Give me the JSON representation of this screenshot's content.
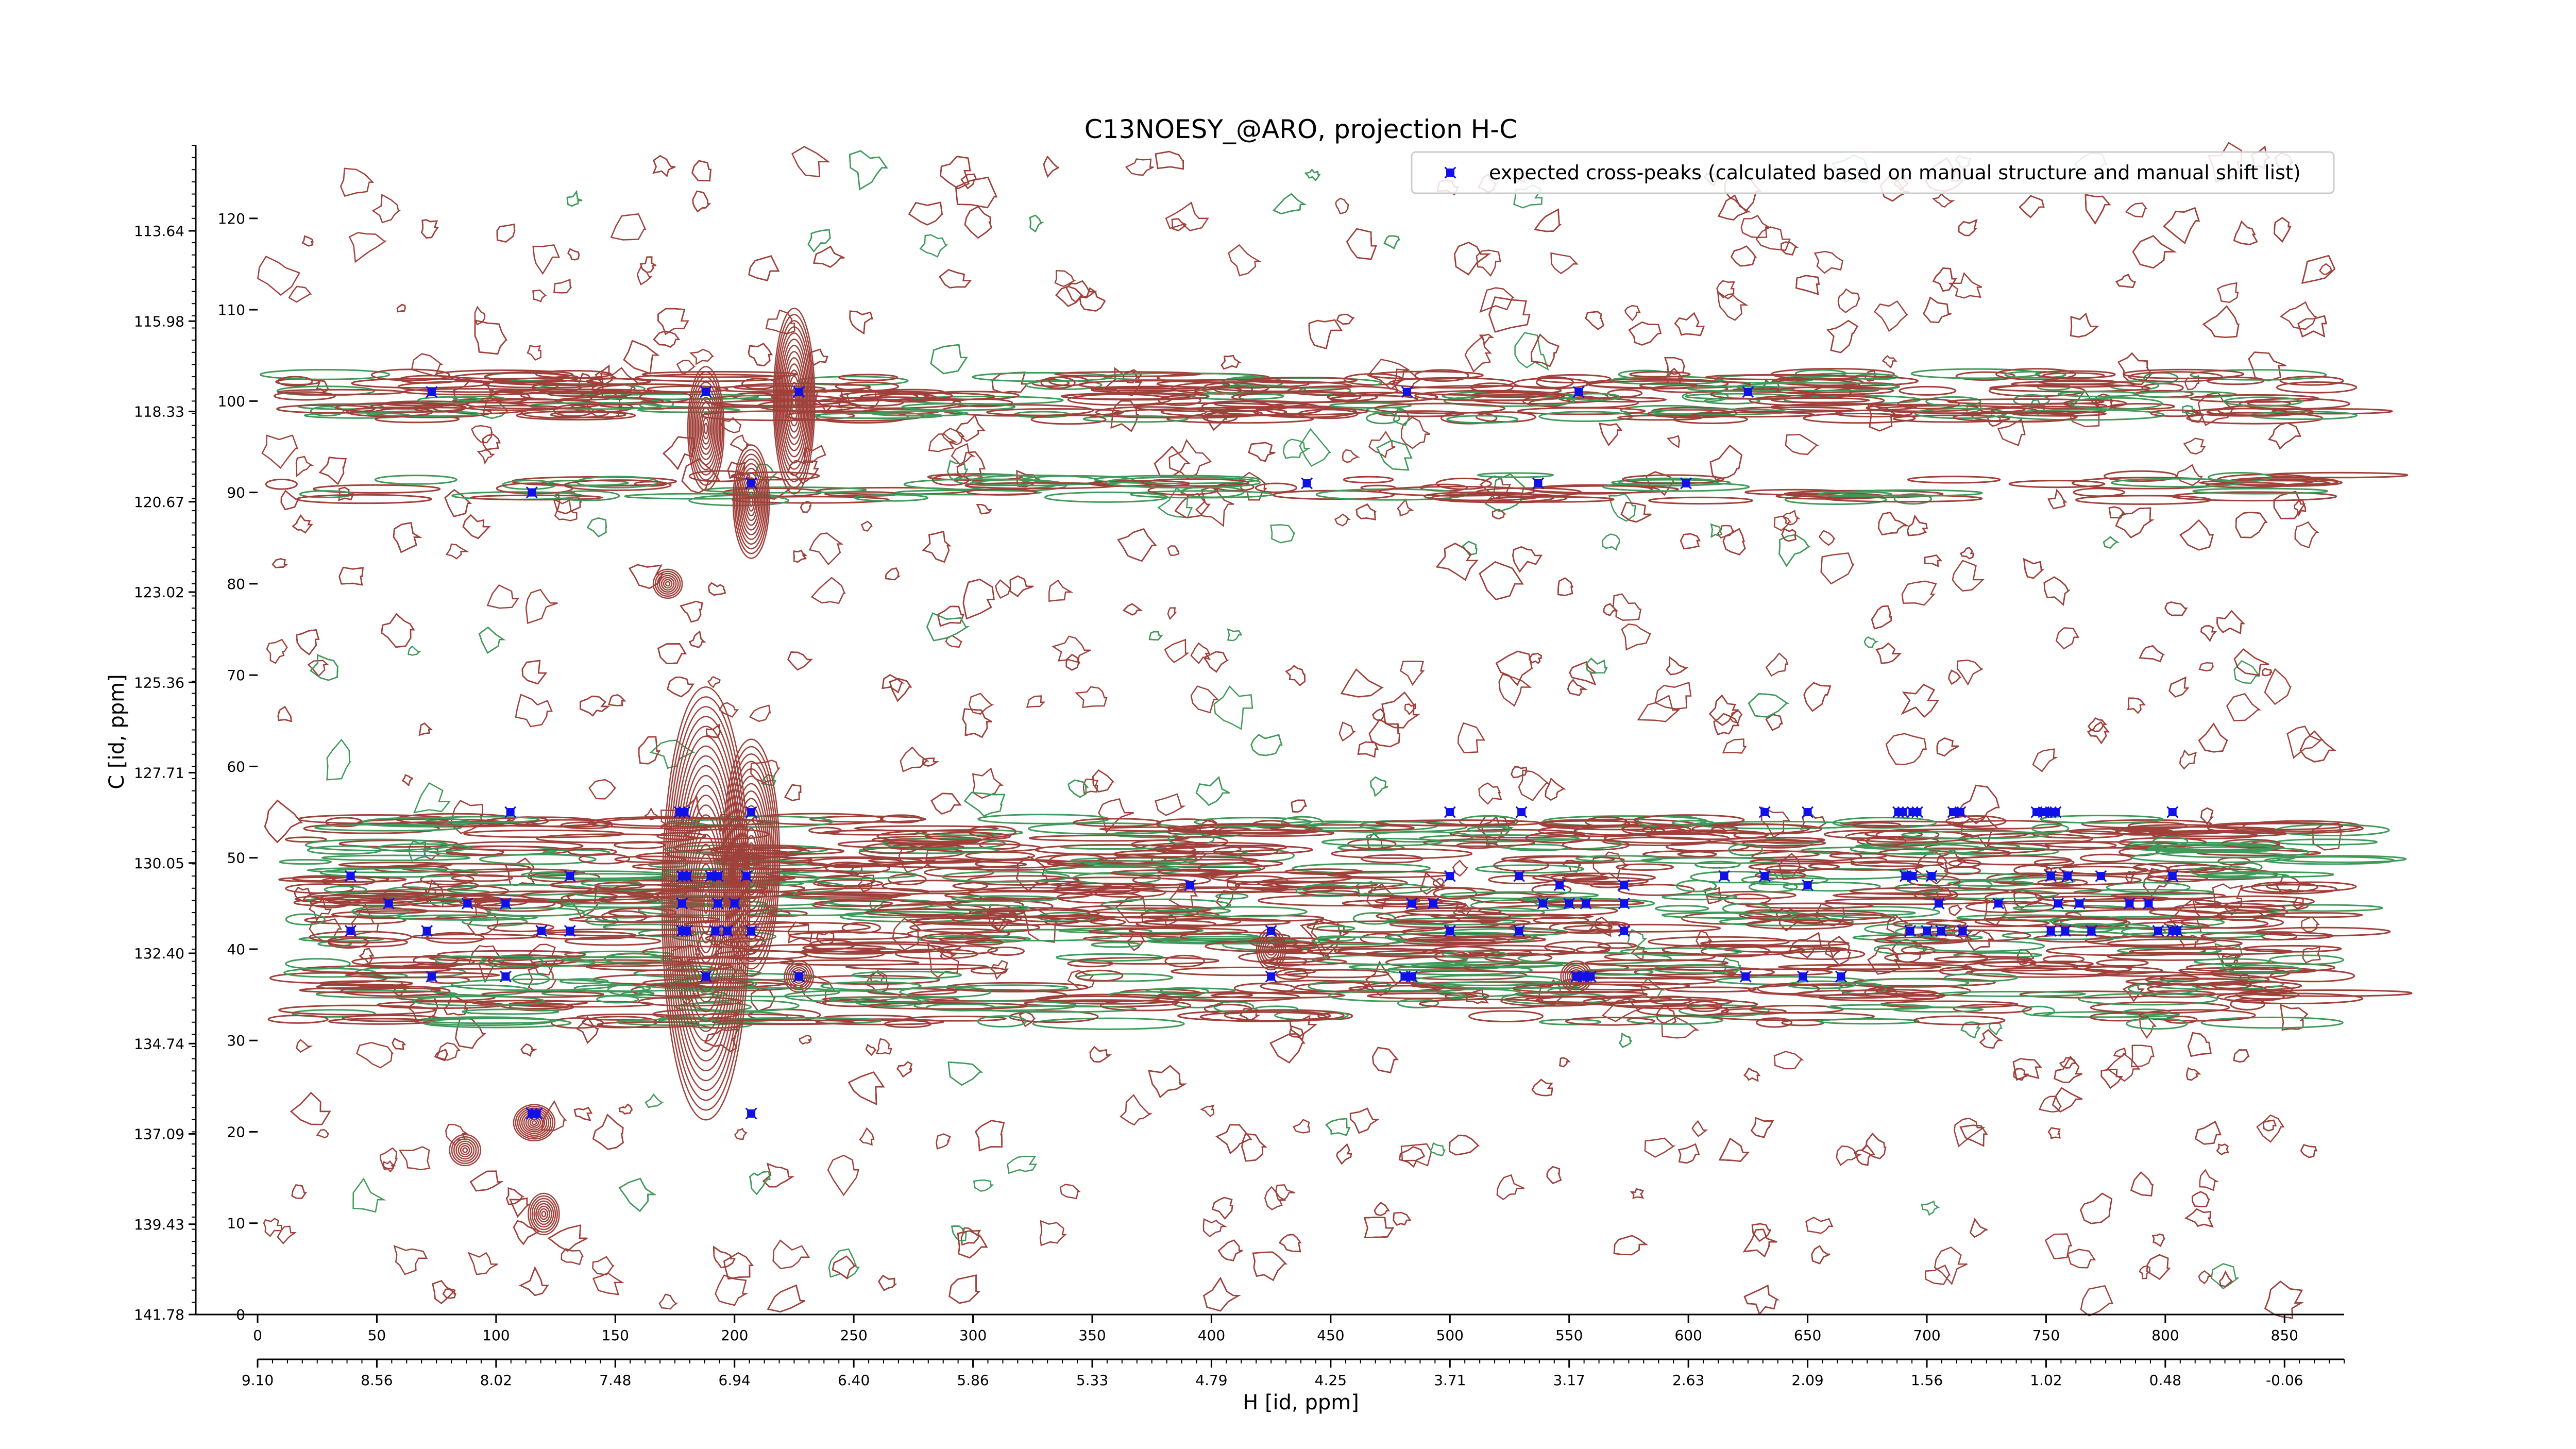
{
  "chart_data": {
    "type": "scatter",
    "title": "C13NOESY_@ARO, projection H-C",
    "xlabel": "H [id, ppm]",
    "ylabel": "C [id, ppm]",
    "xlim": [
      0,
      875
    ],
    "ylim": [
      0,
      128
    ],
    "x_ticks": [
      0,
      50,
      100,
      150,
      200,
      250,
      300,
      350,
      400,
      450,
      500,
      550,
      600,
      650,
      700,
      750,
      800,
      850
    ],
    "y_ticks": [
      0,
      10,
      20,
      30,
      40,
      50,
      60,
      70,
      80,
      90,
      100,
      110,
      120
    ],
    "secondary_x_tick_labels": [
      "9.10",
      "8.56",
      "8.02",
      "7.48",
      "6.94",
      "6.40",
      "5.86",
      "5.33",
      "4.79",
      "4.25",
      "3.71",
      "3.17",
      "2.63",
      "2.09",
      "1.56",
      "1.02",
      "0.48",
      "-0.06"
    ],
    "secondary_y_tick_labels": [
      "141.78",
      "139.43",
      "137.09",
      "134.74",
      "132.40",
      "130.05",
      "127.71",
      "125.36",
      "123.02",
      "120.67",
      "118.33",
      "115.98",
      "113.64"
    ],
    "legend": {
      "placement": "top-right",
      "entries": [
        "expected cross-peaks (calculated based on manual structure and manual shift list)"
      ]
    },
    "grid": false,
    "colors": {
      "positive_contours": "#a0403a",
      "negative_contours": "#3f9a5a",
      "marker": "#1010e8"
    },
    "series": [
      {
        "name": "expected cross-peaks (calculated based on manual structure and manual shift list)",
        "points": [
          [
            73,
            101
          ],
          [
            188,
            101
          ],
          [
            227,
            101
          ],
          [
            482,
            101
          ],
          [
            554,
            101
          ],
          [
            625,
            101
          ],
          [
            115,
            90
          ],
          [
            207,
            91
          ],
          [
            440,
            91
          ],
          [
            537,
            91
          ],
          [
            599,
            91
          ],
          [
            106,
            55
          ],
          [
            177,
            55
          ],
          [
            179,
            55
          ],
          [
            207,
            55
          ],
          [
            500,
            55
          ],
          [
            530,
            55
          ],
          [
            632,
            55
          ],
          [
            650,
            55
          ],
          [
            688,
            55
          ],
          [
            690,
            55
          ],
          [
            694,
            55
          ],
          [
            696,
            55
          ],
          [
            711,
            55
          ],
          [
            714,
            55
          ],
          [
            746,
            55
          ],
          [
            749,
            55
          ],
          [
            752,
            55
          ],
          [
            754,
            55
          ],
          [
            803,
            55
          ],
          [
            39,
            48
          ],
          [
            131,
            48
          ],
          [
            178,
            48
          ],
          [
            180,
            48
          ],
          [
            190,
            48
          ],
          [
            193,
            48
          ],
          [
            205,
            48
          ],
          [
            391,
            47
          ],
          [
            500,
            48
          ],
          [
            529,
            48
          ],
          [
            615,
            48
          ],
          [
            632,
            48
          ],
          [
            650,
            47
          ],
          [
            691,
            48
          ],
          [
            694,
            48
          ],
          [
            702,
            48
          ],
          [
            752,
            48
          ],
          [
            759,
            48
          ],
          [
            773,
            48
          ],
          [
            803,
            48
          ],
          [
            573,
            47
          ],
          [
            573,
            45
          ],
          [
            546,
            47
          ],
          [
            55,
            45
          ],
          [
            88,
            45
          ],
          [
            104,
            45
          ],
          [
            178,
            45
          ],
          [
            193,
            45
          ],
          [
            200,
            45
          ],
          [
            484,
            45
          ],
          [
            493,
            45
          ],
          [
            539,
            45
          ],
          [
            550,
            45
          ],
          [
            557,
            45
          ],
          [
            705,
            45
          ],
          [
            730,
            45
          ],
          [
            755,
            45
          ],
          [
            764,
            45
          ],
          [
            785,
            45
          ],
          [
            793,
            45
          ],
          [
            39,
            42
          ],
          [
            71,
            42
          ],
          [
            119,
            42
          ],
          [
            131,
            42
          ],
          [
            178,
            42
          ],
          [
            180,
            42
          ],
          [
            192,
            42
          ],
          [
            197,
            42
          ],
          [
            207,
            42
          ],
          [
            425,
            42
          ],
          [
            500,
            42
          ],
          [
            529,
            42
          ],
          [
            573,
            42
          ],
          [
            693,
            42
          ],
          [
            700,
            42
          ],
          [
            706,
            42
          ],
          [
            715,
            42
          ],
          [
            752,
            42
          ],
          [
            758,
            42
          ],
          [
            769,
            42
          ],
          [
            797,
            42
          ],
          [
            803,
            42
          ],
          [
            805,
            42
          ],
          [
            73,
            37
          ],
          [
            104,
            37
          ],
          [
            188,
            37
          ],
          [
            227,
            37
          ],
          [
            425,
            37
          ],
          [
            481,
            37
          ],
          [
            484,
            37
          ],
          [
            553,
            37
          ],
          [
            556,
            37
          ],
          [
            559,
            37
          ],
          [
            624,
            37
          ],
          [
            648,
            37
          ],
          [
            664,
            37
          ],
          [
            115,
            22
          ],
          [
            117,
            22
          ],
          [
            207,
            22
          ]
        ]
      }
    ]
  }
}
